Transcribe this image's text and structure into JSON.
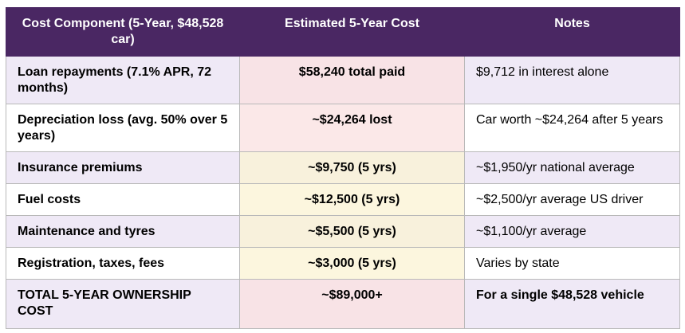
{
  "table": {
    "headers": [
      "Cost Component (5-Year, $48,528 car)",
      "Estimated 5-Year Cost",
      "Notes"
    ],
    "rows": [
      {
        "component": "Loan repayments (7.1% APR, 72 months)",
        "cost": "$58,240 total paid",
        "note": "$9,712 in interest alone"
      },
      {
        "component": "Depreciation loss (avg. 50% over 5 years)",
        "cost": "~$24,264 lost",
        "note": "Car worth ~$24,264 after 5 years"
      },
      {
        "component": "Insurance premiums",
        "cost": "~$9,750 (5 yrs)",
        "note": "~$1,950/yr national average"
      },
      {
        "component": "Fuel costs",
        "cost": "~$12,500 (5 yrs)",
        "note": "~$2,500/yr average US driver"
      },
      {
        "component": "Maintenance and tyres",
        "cost": "~$5,500 (5 yrs)",
        "note": "~$1,100/yr average"
      },
      {
        "component": "Registration, taxes, fees",
        "cost": "~$3,000 (5 yrs)",
        "note": "Varies by state"
      },
      {
        "component": "TOTAL 5-YEAR OWNERSHIP COST",
        "cost": "~$89,000+",
        "note": "For a single $48,528 vehicle"
      }
    ]
  },
  "colors": {
    "header_bg": "#4a2763",
    "red_text": "#9b2326",
    "gold_text": "#8a6414",
    "alt_row_bg": "#efe9f6"
  }
}
